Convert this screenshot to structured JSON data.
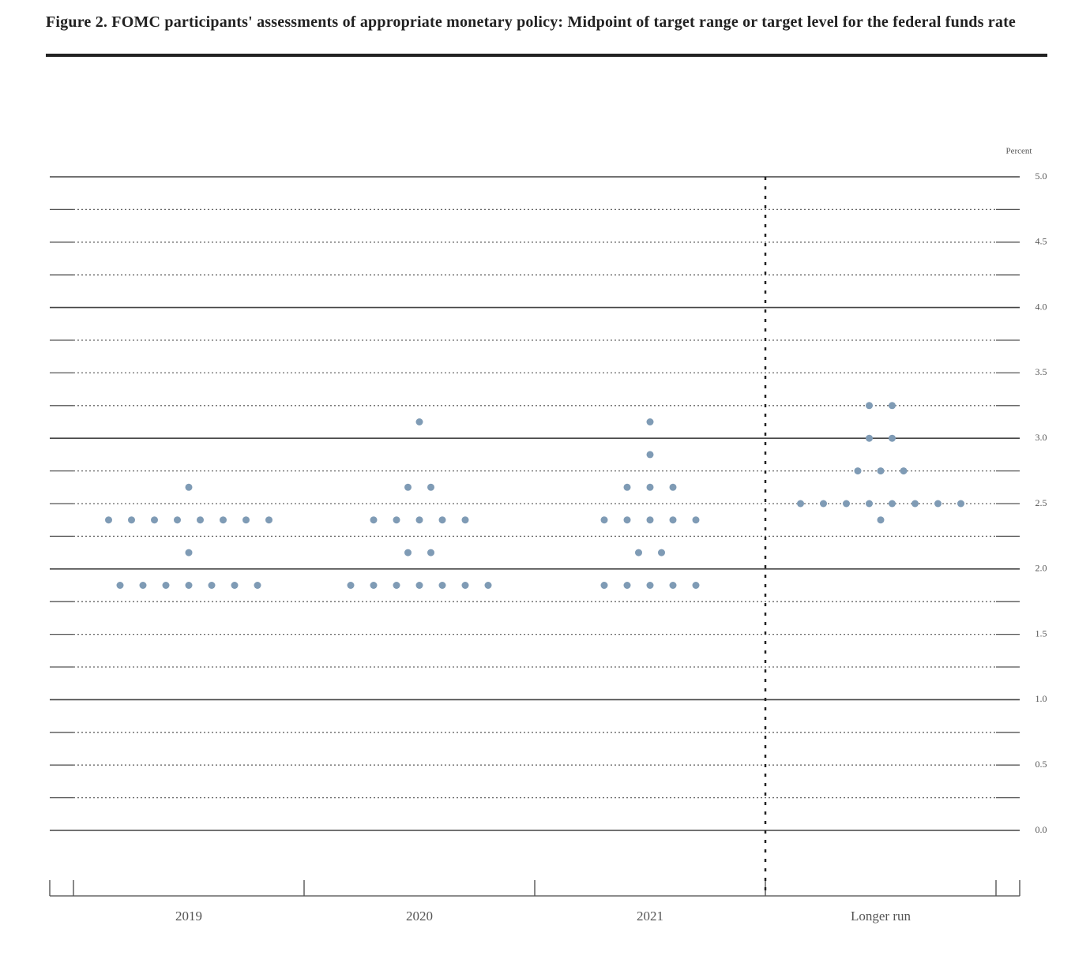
{
  "chart_data": {
    "type": "dot",
    "title": "Figure 2. FOMC participants' assessments of appropriate monetary policy: Midpoint of target range or target level for the federal funds rate",
    "y_unit_label": "Percent",
    "categories": [
      "2019",
      "2020",
      "2021",
      "Longer run"
    ],
    "values": [
      [
        2.625,
        2.375,
        2.375,
        2.375,
        2.375,
        2.375,
        2.375,
        2.375,
        2.375,
        2.125,
        1.875,
        1.875,
        1.875,
        1.875,
        1.875,
        1.875,
        1.875
      ],
      [
        3.125,
        2.625,
        2.625,
        2.375,
        2.375,
        2.375,
        2.375,
        2.375,
        2.125,
        2.125,
        1.875,
        1.875,
        1.875,
        1.875,
        1.875,
        1.875,
        1.875
      ],
      [
        3.125,
        2.875,
        2.625,
        2.625,
        2.625,
        2.375,
        2.375,
        2.375,
        2.375,
        2.375,
        2.125,
        2.125,
        1.875,
        1.875,
        1.875,
        1.875,
        1.875
      ],
      [
        3.25,
        3.25,
        3.0,
        3.0,
        2.75,
        2.75,
        2.75,
        2.5,
        2.5,
        2.5,
        2.5,
        2.5,
        2.5,
        2.5,
        2.5,
        2.375
      ]
    ],
    "color": "#7f9bb5",
    "ylim": [
      0,
      5
    ],
    "yticks": [
      {
        "value": 0,
        "label": "0.0"
      },
      {
        "value": 0.5,
        "label": "0.5"
      },
      {
        "value": 1,
        "label": "1.0"
      },
      {
        "value": 1.5,
        "label": "1.5"
      },
      {
        "value": 2,
        "label": "2.0"
      },
      {
        "value": 2.5,
        "label": "2.5"
      },
      {
        "value": 3,
        "label": "3.0"
      },
      {
        "value": 3.5,
        "label": "3.5"
      },
      {
        "value": 4,
        "label": "4.0"
      },
      {
        "value": 4.5,
        "label": "4.5"
      },
      {
        "value": 5,
        "label": "5.0"
      }
    ],
    "minor_yticks": [
      0.25,
      0.75,
      1.25,
      1.75,
      2.25,
      2.75,
      3.25,
      3.75,
      4.25,
      4.75
    ],
    "grid": true
  }
}
